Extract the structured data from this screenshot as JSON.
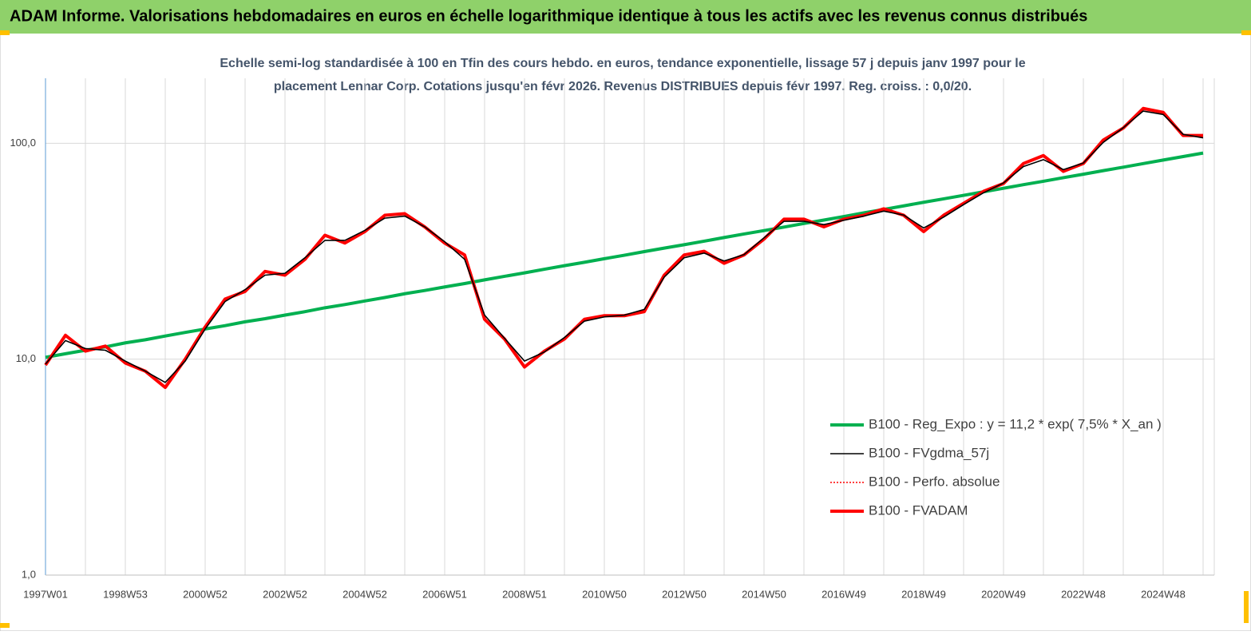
{
  "chart_data": {
    "type": "line",
    "title": "ADAM Informe. Valorisations hebdomadaires en euros en échelle logarithmique identique à tous les actifs avec les revenus connus distribués",
    "subtitle_lines": [
      "Echelle semi-log standardisée à 100 en Tfin des cours hebdo. en euros, tendance exponentielle, lissage 57 j depuis janv 1997 pour le",
      "placement Lennar Corp. Cotations jusqu'en févr 2026. Revenus DISTRIBUES depuis févr 1997. Reg. croiss. : 0,0/20."
    ],
    "categories": [
      "1997W01",
      null,
      null,
      null,
      "1998W53",
      null,
      null,
      null,
      "2000W52",
      null,
      null,
      null,
      "2002W52",
      null,
      null,
      null,
      "2004W52",
      null,
      null,
      null,
      "2006W51",
      null,
      null,
      null,
      "2008W51",
      null,
      null,
      null,
      "2010W50",
      null,
      null,
      null,
      "2012W50",
      null,
      null,
      null,
      "2014W50",
      null,
      null,
      null,
      "2016W49",
      null,
      null,
      null,
      "2018W49",
      null,
      null,
      null,
      "2020W49",
      null,
      null,
      null,
      "2022W48",
      null,
      null,
      null,
      "2024W48",
      null,
      null
    ],
    "log_scale": true,
    "grid": true,
    "legend": "bottom-right",
    "ylim": [
      1,
      200
    ],
    "yticks": [
      {
        "value": 1,
        "label": "1,0"
      },
      {
        "value": 10,
        "label": "10,0"
      },
      {
        "value": 100,
        "label": "100,0"
      }
    ],
    "series": [
      {
        "name": "B100 - Reg_Expo : y = 11,2 * exp( 7,5% *  X_an )",
        "color": "#00b050",
        "style": "thick",
        "values": [
          10.2,
          10.6,
          11.0,
          11.4,
          11.9,
          12.3,
          12.8,
          13.3,
          13.8,
          14.3,
          14.9,
          15.4,
          16.0,
          16.6,
          17.3,
          17.9,
          18.6,
          19.3,
          20.1,
          20.8,
          21.6,
          22.4,
          23.3,
          24.2,
          25.1,
          26.1,
          27.1,
          28.1,
          29.2,
          30.3,
          31.5,
          32.7,
          33.9,
          35.2,
          36.6,
          38.0,
          39.4,
          40.9,
          42.5,
          44.1,
          45.8,
          47.6,
          49.4,
          51.3,
          53.3,
          55.3,
          57.4,
          59.6,
          61.9,
          64.3,
          66.7,
          69.3,
          71.9,
          74.7,
          77.5,
          80.5,
          83.6,
          86.8,
          90.1
        ]
      },
      {
        "name": "B100 - FVgdma_57j",
        "color": "#000000",
        "style": "thin",
        "values": [
          9.5,
          12.2,
          11.2,
          11.0,
          9.8,
          8.8,
          7.8,
          9.8,
          13.8,
          18.5,
          21,
          24.5,
          25,
          29.5,
          35.5,
          35.5,
          39.5,
          45,
          46,
          41,
          35,
          29,
          16,
          12.5,
          9.8,
          10.8,
          12.6,
          15,
          15.7,
          16,
          17,
          24,
          29.5,
          31,
          28.5,
          30.5,
          36.5,
          43.5,
          43.5,
          42,
          44,
          46,
          48.5,
          46.5,
          40.5,
          45.5,
          52,
          59,
          65.5,
          78,
          84,
          75.5,
          81,
          101,
          118,
          141,
          136,
          110,
          106
        ]
      },
      {
        "name": "B100 - Perfo. absolue",
        "color": "#ff0000",
        "style": "dotted",
        "values": [
          9.4,
          12.9,
          10.9,
          11.5,
          9.6,
          8.8,
          7.4,
          10.0,
          14.1,
          19,
          20.6,
          25.5,
          24.5,
          29,
          37.5,
          34.5,
          39,
          46.4,
          47.2,
          41,
          34.5,
          30.4,
          15.3,
          12.4,
          9.2,
          10.9,
          12.4,
          15.3,
          15.9,
          15.9,
          16.6,
          24.5,
          30.4,
          31.6,
          27.8,
          30.4,
          36,
          44.5,
          44.5,
          41,
          44.5,
          46.4,
          49.7,
          46.4,
          39,
          46.4,
          52.7,
          59.9,
          65.1,
          80.6,
          87.7,
          74.1,
          80.6,
          103.5,
          117.6,
          145,
          139,
          108.6,
          108.6
        ]
      },
      {
        "name": "B100 - FVADAM",
        "color": "#ff0000",
        "style": "thick",
        "values": [
          9.4,
          12.9,
          10.9,
          11.5,
          9.6,
          8.8,
          7.4,
          10.0,
          14.1,
          19,
          20.6,
          25.5,
          24.5,
          29,
          37.5,
          34.5,
          39,
          46.4,
          47.2,
          41,
          34.5,
          30.4,
          15.3,
          12.4,
          9.2,
          10.9,
          12.4,
          15.3,
          15.9,
          15.9,
          16.6,
          24.5,
          30.4,
          31.6,
          27.8,
          30.4,
          36,
          44.5,
          44.5,
          41,
          44.5,
          46.4,
          49.7,
          46.4,
          39,
          46.4,
          52.7,
          59.9,
          65.1,
          80.6,
          87.7,
          74.1,
          80.6,
          103.5,
          117.6,
          145,
          139,
          108.6,
          108.6
        ]
      }
    ]
  }
}
